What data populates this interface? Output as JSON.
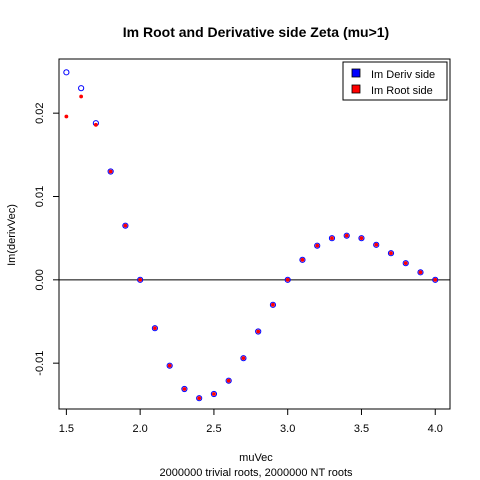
{
  "chart_data": {
    "type": "scatter",
    "title": "Im Root and Derivative side Zeta (mu>1)",
    "xlabel": "muVec",
    "ylabel": "Im(derivVec)",
    "subtitle": "2000000 trivial roots, 2000000 NT roots",
    "xlim": [
      1.45,
      4.1
    ],
    "ylim": [
      -0.0155,
      0.0265
    ],
    "x_ticks": [
      "1.5",
      "2.0",
      "2.5",
      "3.0",
      "3.5",
      "4.0"
    ],
    "y_ticks": [
      "-0.01",
      "0.00",
      "0.01",
      "0.02"
    ],
    "hline": 0,
    "legend_position": "top-right",
    "x": [
      1.5,
      1.6,
      1.7,
      1.8,
      1.9,
      2.0,
      2.1,
      2.2,
      2.3,
      2.4,
      2.5,
      2.6,
      2.7,
      2.8,
      2.9,
      3.0,
      3.1,
      3.2,
      3.3,
      3.4,
      3.5,
      3.6,
      3.7,
      3.8,
      3.9,
      4.0
    ],
    "series": [
      {
        "name": "Im Deriv side",
        "color": "#0000ff",
        "values": [
          0.0249,
          0.023,
          0.0188,
          0.013,
          0.0065,
          0.0,
          -0.0058,
          -0.0103,
          -0.0131,
          -0.0142,
          -0.0137,
          -0.0121,
          -0.0094,
          -0.0062,
          -0.003,
          0.0,
          0.0024,
          0.0041,
          0.005,
          0.0053,
          0.005,
          0.0042,
          0.0032,
          0.002,
          0.0009,
          0.0
        ]
      },
      {
        "name": "Im Root side",
        "color": "#ff0000",
        "values": [
          0.0196,
          0.022,
          0.0186,
          0.013,
          0.0065,
          0.0,
          -0.0058,
          -0.0103,
          -0.0131,
          -0.0142,
          -0.0137,
          -0.0121,
          -0.0094,
          -0.0062,
          -0.003,
          0.0,
          0.0024,
          0.0041,
          0.005,
          0.0053,
          0.005,
          0.0042,
          0.0032,
          0.002,
          0.0009,
          0.0
        ]
      }
    ]
  }
}
